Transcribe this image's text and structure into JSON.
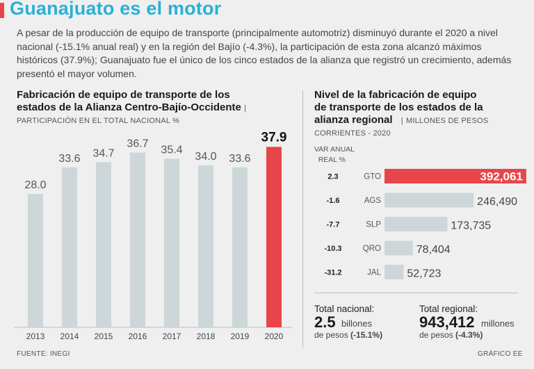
{
  "header": {
    "title": "Guanajuato es el motor",
    "intro": "A pesar de la producción de equipo de transporte (principalmente automotriz) disminuyó durante el 2020 a nivel nacional (-15.1% anual real) y en la región del Bajío (-4.3%), la participación de esta zona alcanzó máximos históricos (37.9%); Guanajuato fue el único de los cinco estados de la alianza que registró un crecimiento, además presentó el mayor volumen."
  },
  "left_chart": {
    "title_line1": "Fabricación de equipo de transporte de los",
    "title_line2": "estados de la Alianza Centro-Bajío-Occidente",
    "separator": "|",
    "subtitle": "PARTICIPACIÓN EN EL TOTAL NACIONAL %"
  },
  "right_chart": {
    "title_line1": "Nivel de la fabricación de equipo",
    "title_line2": "de transporte de los estados de la",
    "title_line3": "alianza regional",
    "separator": "|",
    "subtitle_a": "MILLONES DE PESOS",
    "subtitle_b": "CORRIENTES - 2020",
    "var_header_1": "VAR ANUAL",
    "var_header_2": "REAL %"
  },
  "totals": {
    "national_label": "Total nacional:",
    "national_value": "2.5",
    "national_unit": "billones",
    "national_note_pre": "de pesos",
    "national_note_pct": "(-15.1%)",
    "regional_label": "Total regional:",
    "regional_value": "943,412",
    "regional_unit": "millones",
    "regional_note_pre": "de pesos",
    "regional_note_pct": "(-4.3%)"
  },
  "footer": {
    "source": "FUENTE: INEGI",
    "credit": "GRÁFICO EE"
  },
  "colors": {
    "accent": "#e8454a",
    "title": "#29b0d8",
    "bar": "#cdd6d9",
    "background": "#efefef"
  },
  "chart_data": [
    {
      "type": "bar",
      "title": "Fabricación de equipo de transporte de los estados de la Alianza Centro-Bajío-Occidente",
      "ylabel": "PARTICIPACIÓN EN EL TOTAL NACIONAL %",
      "categories": [
        "2013",
        "2014",
        "2015",
        "2016",
        "2017",
        "2018",
        "2019",
        "2020"
      ],
      "values": [
        28.0,
        33.6,
        34.7,
        36.7,
        35.4,
        34.0,
        33.6,
        37.9
      ],
      "labels": [
        "28.0",
        "33.6",
        "34.7",
        "36.7",
        "35.4",
        "34.0",
        "33.6",
        "37.9"
      ],
      "highlight": "2020",
      "ylim": [
        0,
        40
      ]
    },
    {
      "type": "bar",
      "orientation": "horizontal",
      "title": "Nivel de la fabricación de equipo de transporte de los estados de la alianza regional",
      "unit": "MILLONES DE PESOS CORRIENTES - 2020",
      "categories": [
        "GTO",
        "AGS",
        "SLP",
        "QRO",
        "JAL"
      ],
      "values": [
        392061,
        246490,
        173735,
        78404,
        52723
      ],
      "labels": [
        "392,061",
        "246,490",
        "173,735",
        "78,404",
        "52,723"
      ],
      "var_anual": [
        "2.3",
        "-1.6",
        "-7.7",
        "-10.3",
        "-31.2"
      ],
      "highlight": "GTO",
      "xlim": [
        0,
        400000
      ]
    }
  ]
}
